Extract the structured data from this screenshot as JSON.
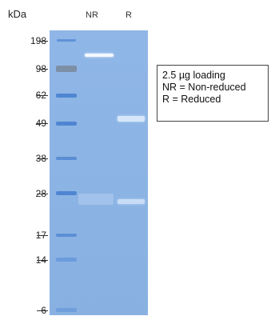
{
  "units_label": "kDa",
  "lanes": [
    {
      "label": "NR"
    },
    {
      "label": "R"
    }
  ],
  "markers": [
    "198",
    "98",
    "62",
    "49",
    "38",
    "28",
    "17",
    "14",
    "6"
  ],
  "legend": {
    "line1": "2.5 µg loading",
    "line2": "NR = Non-reduced",
    "line3": "R = Reduced"
  },
  "colors": {
    "gel_background": "#8cb4e4",
    "ladder_band": "#5b8fd6",
    "sample_band": "#d4e6fa"
  }
}
